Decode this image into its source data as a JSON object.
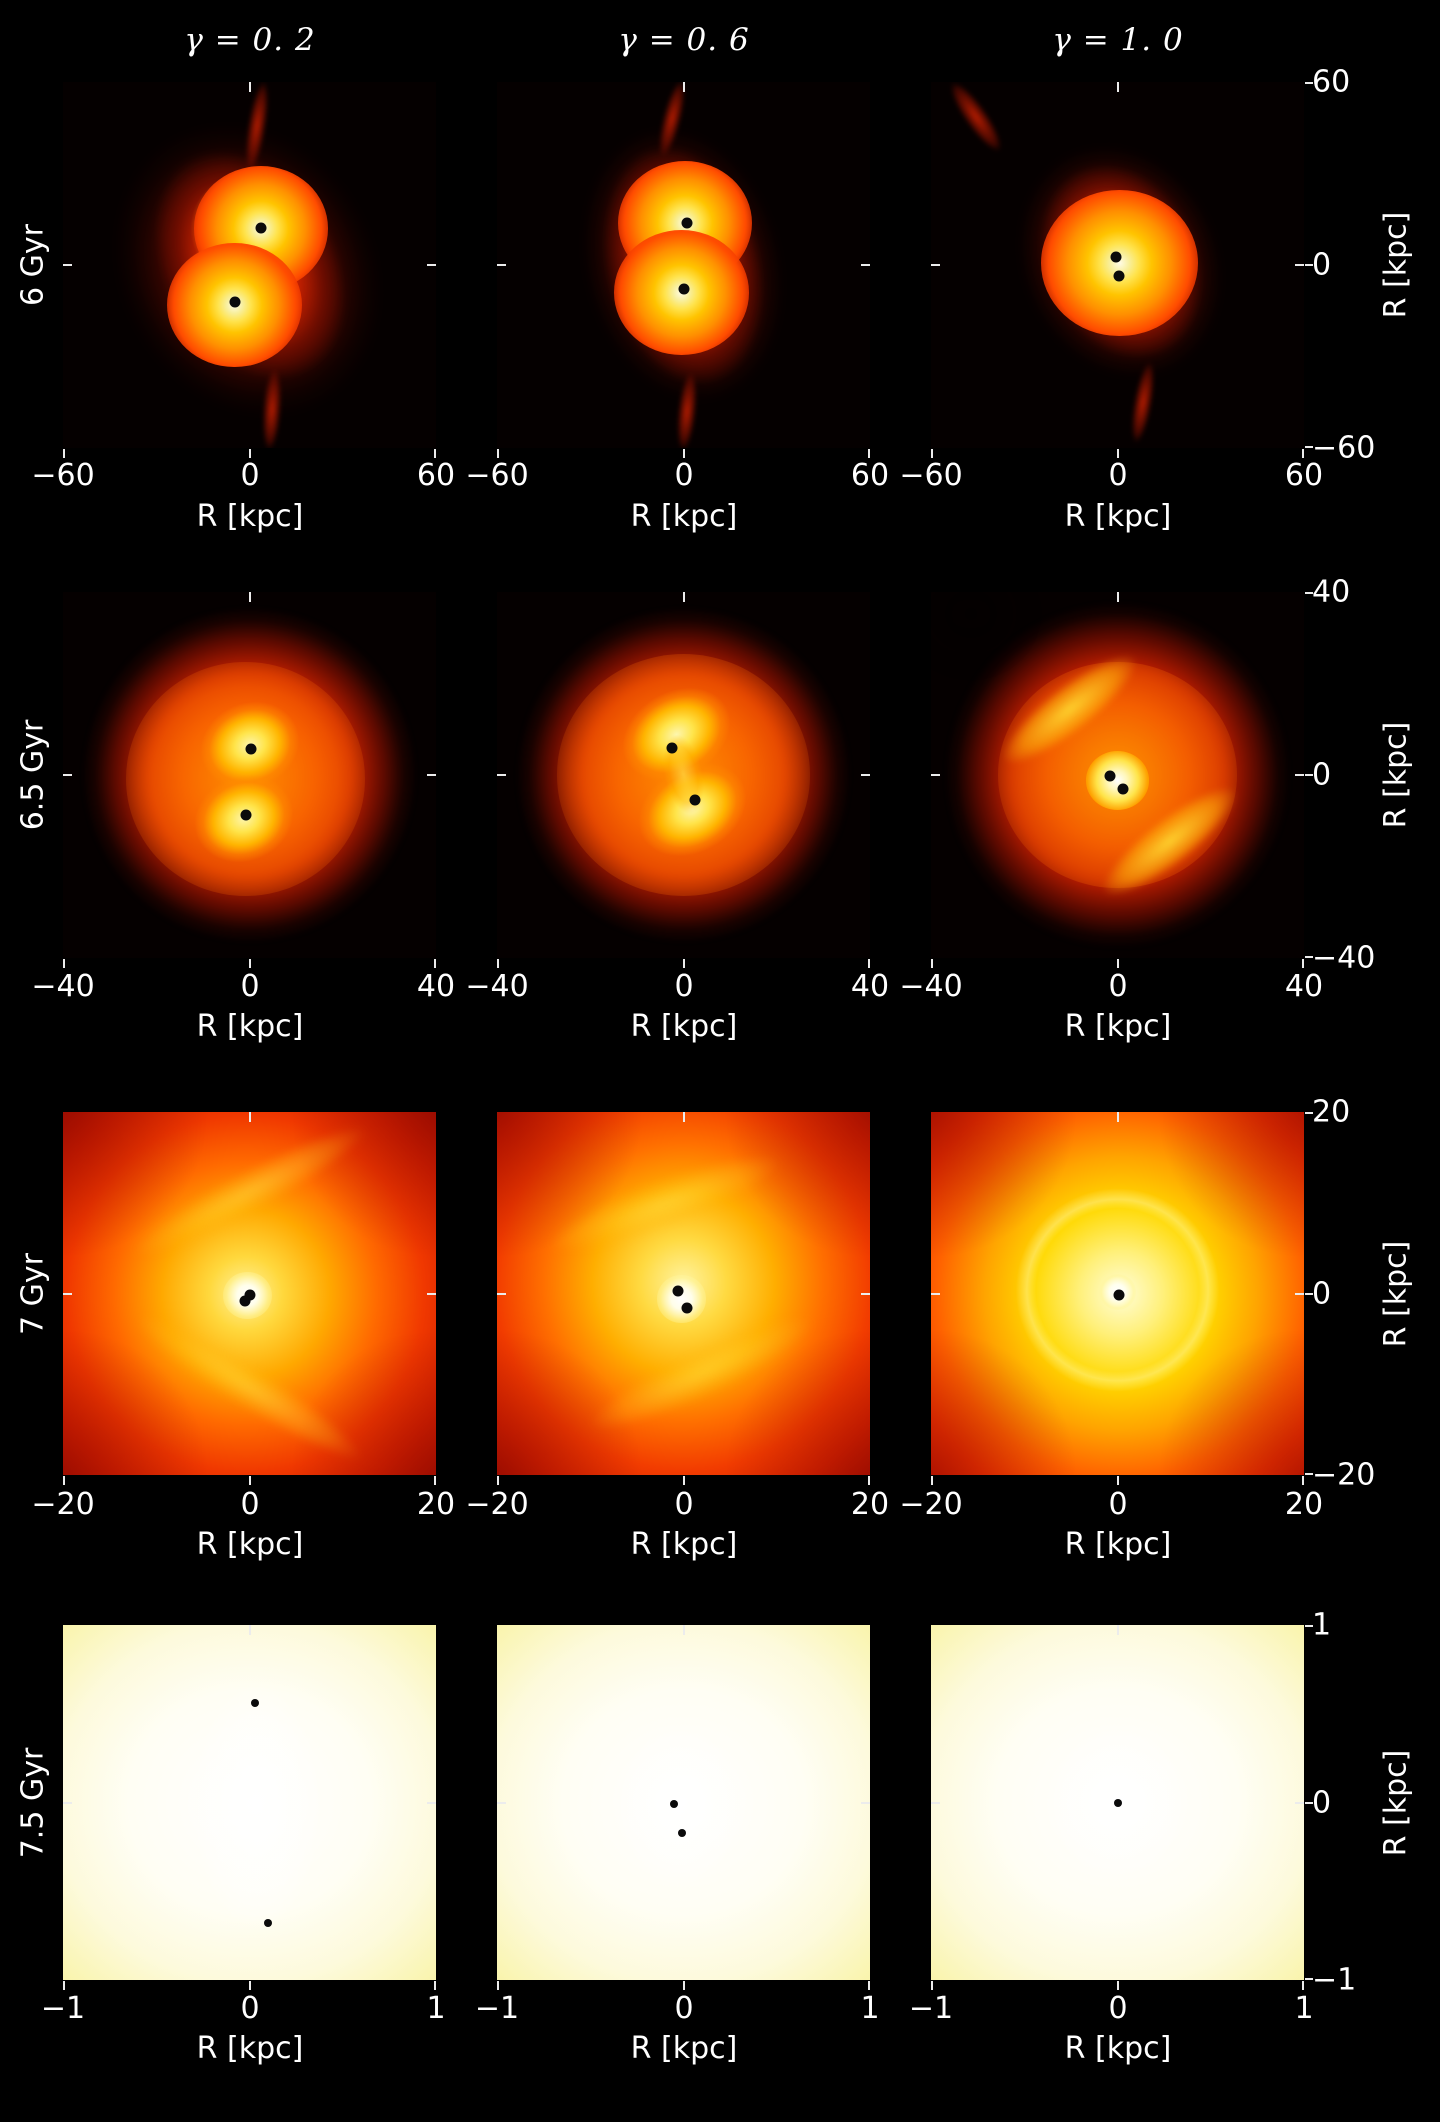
{
  "figure": {
    "columns": [
      {
        "title": "γ = 0. 2"
      },
      {
        "title": "γ = 0. 6"
      },
      {
        "title": "γ = 1. 0"
      }
    ],
    "rows": [
      {
        "time_label": "6 Gyr",
        "xticks": [
          "−60",
          "0",
          "60"
        ],
        "xlabel": "R [kpc]",
        "yticks": [
          "60",
          "0",
          "−60"
        ],
        "ylabel": "R [kpc]"
      },
      {
        "time_label": "6.5 Gyr",
        "xticks": [
          "−40",
          "0",
          "40"
        ],
        "xlabel": "R [kpc]",
        "yticks": [
          "40",
          "0",
          "−40"
        ],
        "ylabel": "R [kpc]"
      },
      {
        "time_label": "7 Gyr",
        "xticks": [
          "−20",
          "0",
          "20"
        ],
        "xlabel": "R [kpc]",
        "yticks": [
          "20",
          "0",
          "−20"
        ],
        "ylabel": "R [kpc]"
      },
      {
        "time_label": "7.5 Gyr",
        "xticks": [
          "−1",
          "0",
          "1"
        ],
        "xlabel": "R [kpc]",
        "yticks": [
          "1",
          "0",
          "−1"
        ],
        "ylabel": "R [kpc]"
      }
    ]
  },
  "colors": {
    "background": "#000000",
    "text": "#ffffff",
    "colormap_low": "#300000",
    "colormap_mid": "#ff5a00",
    "colormap_high": "#fffce8"
  },
  "chart_data": {
    "type": "heatmap",
    "title": "",
    "xlabel": "R [kpc]",
    "ylabel": "R [kpc]",
    "column_titles": [
      "γ = 0. 2",
      "γ = 0. 6",
      "γ = 1. 0"
    ],
    "row_titles": [
      "6 Gyr",
      "6.5 Gyr",
      "7 Gyr",
      "7.5 Gyr"
    ],
    "panels": [
      {
        "row": 0,
        "col": 0,
        "time": "6 Gyr",
        "gamma": 0.2,
        "xlim": [
          -60,
          60
        ],
        "ylim": [
          -60,
          60
        ],
        "dots": [
          [
            3.6,
            12.0
          ],
          [
            -4.8,
            -12.0
          ]
        ]
      },
      {
        "row": 0,
        "col": 1,
        "time": "6 Gyr",
        "gamma": 0.6,
        "xlim": [
          -60,
          60
        ],
        "ylim": [
          -60,
          60
        ],
        "dots": [
          [
            1.0,
            13.8
          ],
          [
            0.0,
            -8.0
          ]
        ]
      },
      {
        "row": 0,
        "col": 2,
        "time": "6 Gyr",
        "gamma": 1.0,
        "xlim": [
          -60,
          60
        ],
        "ylim": [
          -60,
          60
        ],
        "dots": [
          [
            -0.5,
            2.6
          ],
          [
            0.5,
            -3.6
          ]
        ]
      },
      {
        "row": 1,
        "col": 0,
        "time": "6.5 Gyr",
        "gamma": 0.2,
        "xlim": [
          -40,
          40
        ],
        "ylim": [
          -40,
          40
        ],
        "dots": [
          [
            0.3,
            5.7
          ],
          [
            -0.8,
            -8.8
          ]
        ]
      },
      {
        "row": 1,
        "col": 1,
        "time": "6.5 Gyr",
        "gamma": 0.6,
        "xlim": [
          -40,
          40
        ],
        "ylim": [
          -40,
          40
        ],
        "dots": [
          [
            -2.4,
            5.9
          ],
          [
            2.4,
            -5.5
          ]
        ]
      },
      {
        "row": 1,
        "col": 2,
        "time": "6.5 Gyr",
        "gamma": 1.0,
        "xlim": [
          -40,
          40
        ],
        "ylim": [
          -40,
          40
        ],
        "dots": [
          [
            -1.6,
            -0.2
          ],
          [
            1.2,
            -3.1
          ]
        ]
      },
      {
        "row": 2,
        "col": 0,
        "time": "7 Gyr",
        "gamma": 0.2,
        "xlim": [
          -20,
          20
        ],
        "ylim": [
          -20,
          20
        ],
        "dots": [
          [
            0.0,
            -0.2
          ],
          [
            -0.5,
            -0.8
          ]
        ]
      },
      {
        "row": 2,
        "col": 1,
        "time": "7 Gyr",
        "gamma": 0.6,
        "xlim": [
          -20,
          20
        ],
        "ylim": [
          -20,
          20
        ],
        "dots": [
          [
            -0.6,
            0.3
          ],
          [
            0.4,
            -1.6
          ]
        ]
      },
      {
        "row": 2,
        "col": 2,
        "time": "7 Gyr",
        "gamma": 1.0,
        "xlim": [
          -20,
          20
        ],
        "ylim": [
          -20,
          20
        ],
        "dots": [
          [
            0.2,
            -0.2
          ]
        ]
      },
      {
        "row": 3,
        "col": 0,
        "time": "7.5 Gyr",
        "gamma": 0.2,
        "xlim": [
          -1,
          1
        ],
        "ylim": [
          -1,
          1
        ],
        "dots": [
          [
            0.03,
            0.56
          ],
          [
            0.1,
            -0.68
          ]
        ]
      },
      {
        "row": 3,
        "col": 1,
        "time": "7.5 Gyr",
        "gamma": 0.6,
        "xlim": [
          -1,
          1
        ],
        "ylim": [
          -1,
          1
        ],
        "dots": [
          [
            -0.05,
            -0.01
          ],
          [
            -0.01,
            -0.17
          ]
        ]
      },
      {
        "row": 3,
        "col": 2,
        "time": "7.5 Gyr",
        "gamma": 1.0,
        "xlim": [
          -1,
          1
        ],
        "ylim": [
          -1,
          1
        ],
        "dots": [
          [
            0.0,
            0.0
          ]
        ]
      }
    ]
  }
}
